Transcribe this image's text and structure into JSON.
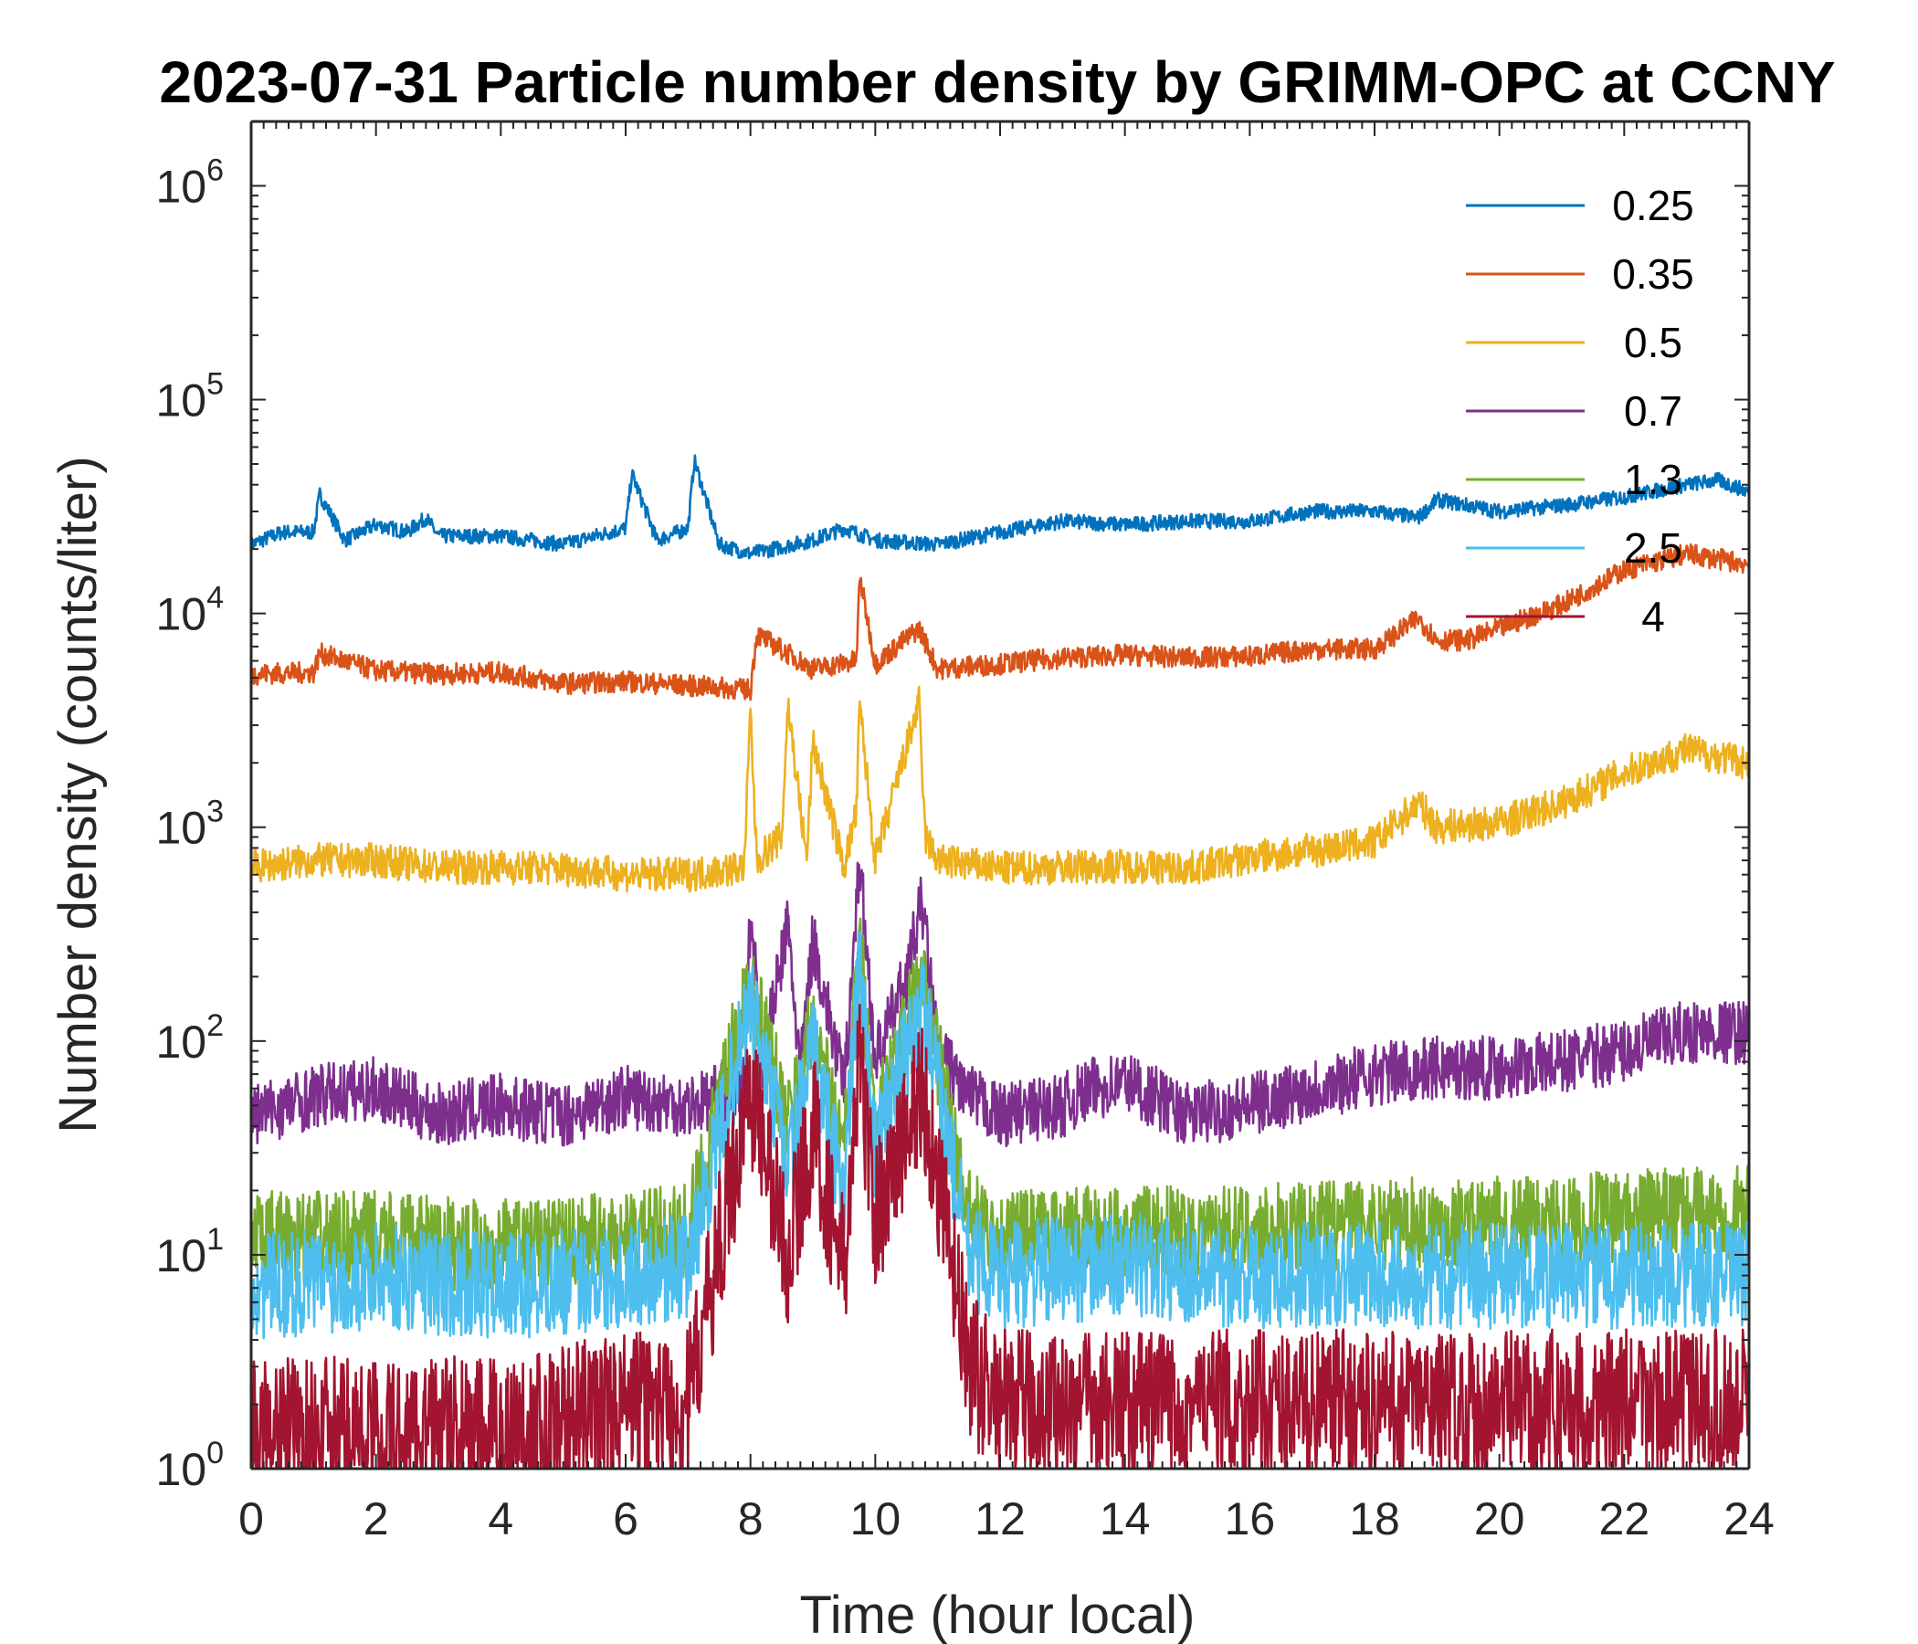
{
  "chart_data": {
    "type": "line",
    "title": "2023-07-31 Particle number density by GRIMM-OPC at CCNY",
    "xlabel": "Time (hour local)",
    "ylabel": "Number density (counts/liter)",
    "xlim": [
      0,
      24
    ],
    "ylim": [
      1,
      2000000
    ],
    "yscale": "log",
    "xticks": [
      0,
      2,
      4,
      6,
      8,
      10,
      12,
      14,
      16,
      18,
      20,
      22,
      24
    ],
    "xtick_labels": [
      "0",
      "2",
      "4",
      "6",
      "8",
      "10",
      "12",
      "14",
      "16",
      "18",
      "20",
      "22",
      "24"
    ],
    "yticks": [
      1,
      10,
      100,
      1000,
      10000,
      100000,
      1000000
    ],
    "ytick_labels": [
      {
        "base": "10",
        "exp": "0"
      },
      {
        "base": "10",
        "exp": "1"
      },
      {
        "base": "10",
        "exp": "2"
      },
      {
        "base": "10",
        "exp": "3"
      },
      {
        "base": "10",
        "exp": "4"
      },
      {
        "base": "10",
        "exp": "5"
      },
      {
        "base": "10",
        "exp": "6"
      }
    ],
    "legend_position": "top-right",
    "series": [
      {
        "name": "0.25",
        "color": "#0072BD",
        "x": [
          0,
          0.5,
          1,
          1.1,
          1.5,
          2,
          2.5,
          2.8,
          3,
          4,
          5,
          5.5,
          6,
          6.1,
          6.5,
          7,
          7.1,
          7.5,
          8,
          9,
          9.5,
          10,
          11,
          12,
          13,
          14,
          15,
          16,
          17,
          18,
          18.7,
          19,
          19.5,
          20,
          21,
          22,
          23,
          23.5,
          24
        ],
        "values": [
          21000,
          24000,
          24000,
          36000,
          22000,
          26000,
          24000,
          28000,
          23000,
          23000,
          21000,
          23000,
          25000,
          45000,
          22000,
          25000,
          52000,
          21000,
          19000,
          22000,
          25000,
          22000,
          21000,
          24000,
          27000,
          26000,
          27000,
          27000,
          30000,
          30000,
          28000,
          34000,
          32000,
          30000,
          32000,
          35000,
          40000,
          42000,
          37000
        ]
      },
      {
        "name": "0.35",
        "color": "#D95319",
        "x": [
          0,
          1,
          1.1,
          2,
          3,
          4,
          5,
          6,
          7,
          8,
          8.1,
          9,
          9.7,
          9.75,
          10,
          10.7,
          11,
          12,
          13,
          14,
          15,
          16,
          17,
          18,
          18.7,
          19,
          19.5,
          20,
          21,
          22,
          23,
          24
        ],
        "values": [
          5200,
          5300,
          6500,
          5400,
          5200,
          5300,
          4700,
          4800,
          4600,
          4400,
          8000,
          5500,
          6000,
          15000,
          5800,
          8500,
          5500,
          5800,
          6200,
          6400,
          6200,
          6300,
          6800,
          6800,
          9500,
          7500,
          7500,
          8500,
          11000,
          16000,
          19000,
          17000
        ]
      },
      {
        "name": "0.5",
        "color": "#EDB120",
        "x": [
          0,
          1,
          2,
          3,
          4,
          5,
          6,
          7,
          7.9,
          8,
          8.1,
          8.5,
          8.6,
          8.9,
          9,
          9.5,
          9.7,
          9.75,
          10,
          10.7,
          10.8,
          11,
          12,
          13,
          14,
          15,
          16,
          17,
          18,
          18.7,
          19,
          20,
          21,
          22,
          23,
          24
        ],
        "values": [
          650,
          700,
          700,
          650,
          650,
          640,
          600,
          600,
          650,
          3500,
          700,
          900,
          3800,
          700,
          2500,
          650,
          1200,
          3800,
          700,
          3800,
          900,
          700,
          640,
          650,
          660,
          640,
          720,
          780,
          850,
          1300,
          1000,
          1050,
          1300,
          1800,
          2300,
          2000
        ]
      },
      {
        "name": "0.7",
        "color": "#7E2F8E",
        "x": [
          0,
          1,
          2,
          3,
          4,
          5,
          6,
          7,
          7.9,
          8,
          8.2,
          8.6,
          8.8,
          9,
          9.5,
          9.75,
          10,
          10.5,
          10.75,
          11,
          11.5,
          12,
          13,
          13.5,
          14,
          15,
          16,
          17,
          18,
          19,
          20,
          21,
          22,
          23,
          24
        ],
        "values": [
          45,
          55,
          60,
          45,
          50,
          45,
          55,
          50,
          60,
          400,
          80,
          350,
          70,
          300,
          60,
          700,
          80,
          200,
          450,
          90,
          55,
          45,
          50,
          60,
          65,
          45,
          50,
          60,
          70,
          75,
          75,
          80,
          90,
          110,
          110
        ]
      },
      {
        "name": "1.3",
        "color": "#77AC30",
        "x": [
          0,
          2,
          4,
          6,
          7,
          8,
          8.6,
          9,
          9.5,
          9.75,
          10,
          10.75,
          11.5,
          12,
          14,
          16,
          18,
          20,
          22,
          24
        ],
        "values": [
          12,
          12,
          11,
          12,
          13,
          200,
          40,
          120,
          30,
          300,
          40,
          200,
          15,
          12,
          13,
          13,
          14,
          14,
          15,
          16
        ]
      },
      {
        "name": "2.5",
        "color": "#4DBEEE",
        "x": [
          0,
          2,
          4,
          6,
          7,
          8,
          8.6,
          9,
          9.5,
          9.75,
          10,
          10.75,
          11.5,
          12,
          14,
          16,
          18,
          20,
          22,
          24
        ],
        "values": [
          7,
          8,
          7,
          8,
          9,
          150,
          25,
          90,
          20,
          250,
          30,
          150,
          10,
          8,
          9,
          8,
          8,
          8,
          8,
          8
        ]
      },
      {
        "name": "4",
        "color": "#A2142F",
        "x": [
          0,
          2,
          4,
          6,
          7,
          8,
          8.6,
          9,
          9.5,
          9.75,
          10,
          10.75,
          11.5,
          12,
          14,
          16,
          18,
          20,
          22,
          24
        ],
        "values": [
          1.5,
          1.5,
          1.5,
          2,
          2,
          60,
          10,
          40,
          8,
          80,
          15,
          60,
          3,
          2,
          2,
          2,
          2,
          2,
          2,
          2
        ]
      }
    ]
  }
}
